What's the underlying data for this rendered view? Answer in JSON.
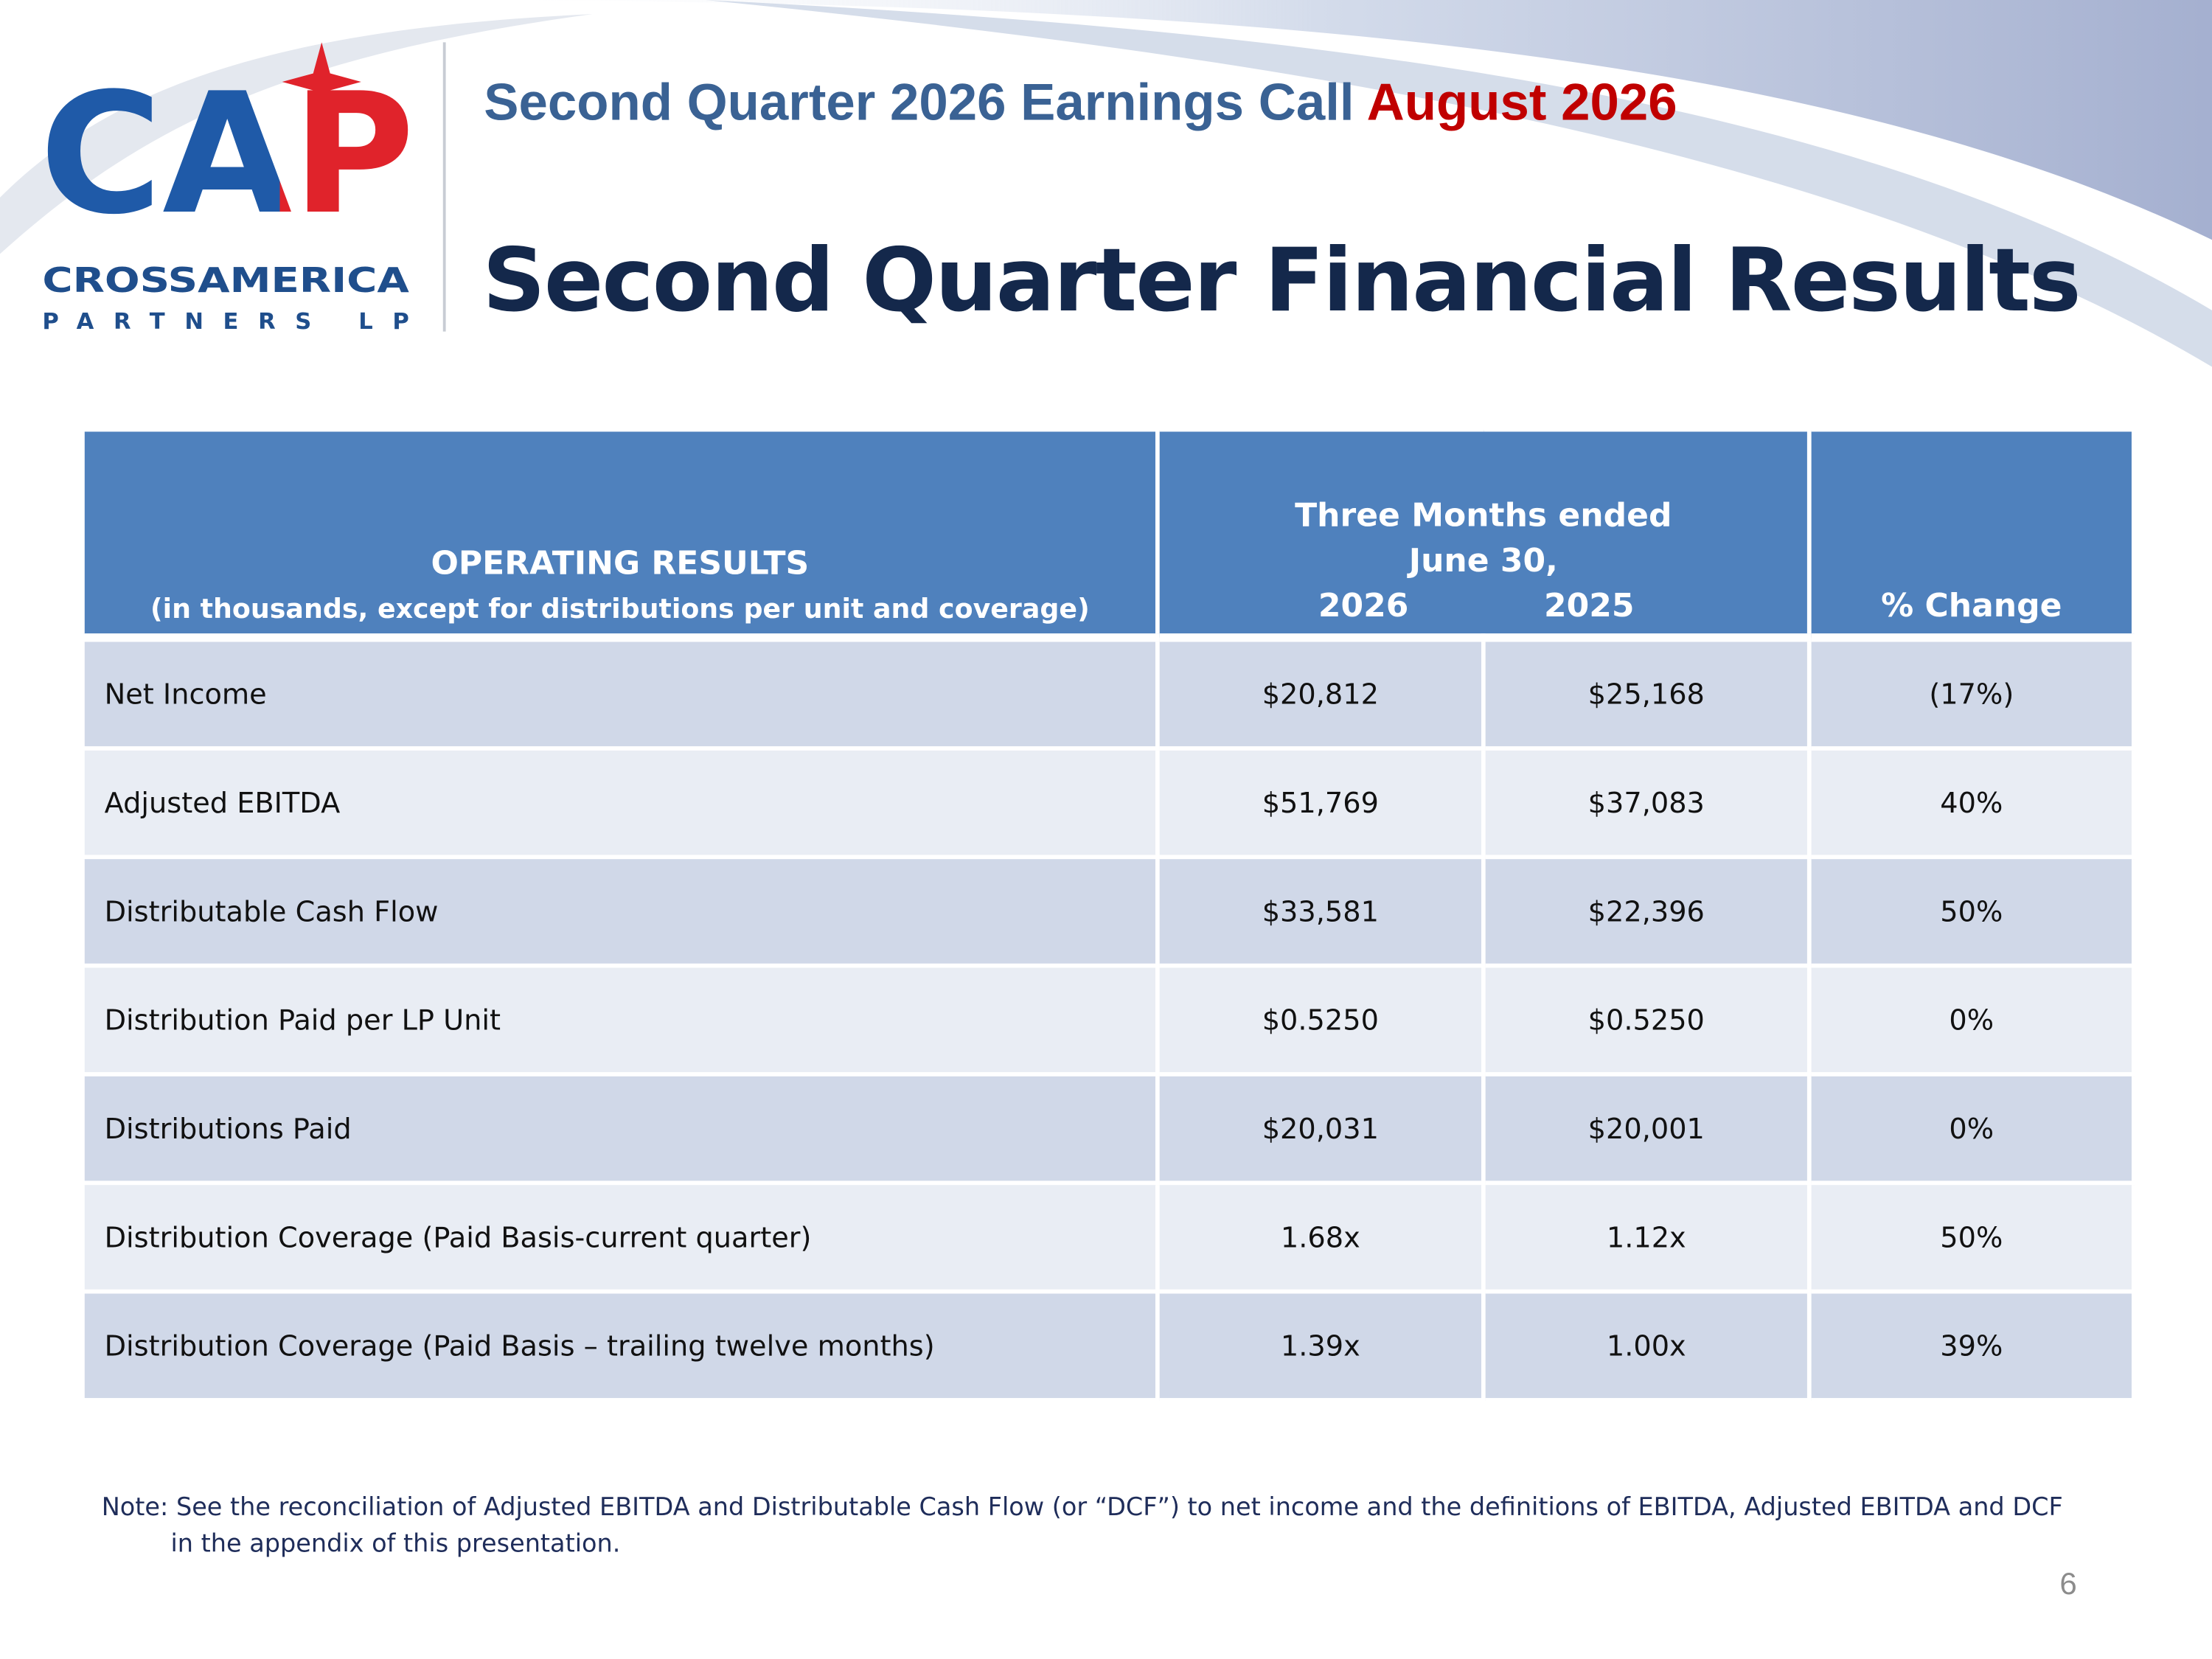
{
  "logo": {
    "mark": "CAP",
    "line1": "CROSSAMERICA",
    "line2": "PARTNERS LP"
  },
  "header": {
    "subtitle": "Second Quarter 2026 Earnings Call",
    "date": "August 2026",
    "title": "Second Quarter Financial Results"
  },
  "table": {
    "head": {
      "label": "OPERATING RESULTS",
      "sublabel": "(in thousands, except for distributions per unit and coverage)",
      "period": "Three Months ended",
      "period_date": "June 30,",
      "years": [
        "2026",
        "2025"
      ],
      "change": "% Change"
    },
    "rows": [
      [
        "Net Income",
        "$20,812",
        "$25,168",
        "(17%)"
      ],
      [
        "Adjusted EBITDA",
        "$51,769",
        "$37,083",
        "40%"
      ],
      [
        "Distributable Cash Flow",
        "$33,581",
        "$22,396",
        "50%"
      ],
      [
        "Distribution Paid per LP Unit",
        "$0.5250",
        "$0.5250",
        "0%"
      ],
      [
        "Distributions Paid",
        "$20,031",
        "$20,001",
        "0%"
      ],
      [
        "Distribution Coverage (Paid Basis-current quarter)",
        "1.68x",
        "1.12x",
        "50%"
      ],
      [
        "Distribution Coverage (Paid Basis – trailing twelve months)",
        "1.39x",
        "1.00x",
        "39%"
      ]
    ]
  },
  "note": {
    "line1": "Note: See the reconciliation of Adjusted EBITDA and Distributable Cash Flow (or “DCF”) to net income and the definitions of EBITDA, Adjusted EBITDA and DCF",
    "line2": "in the appendix of this presentation."
  },
  "page_number": "6"
}
